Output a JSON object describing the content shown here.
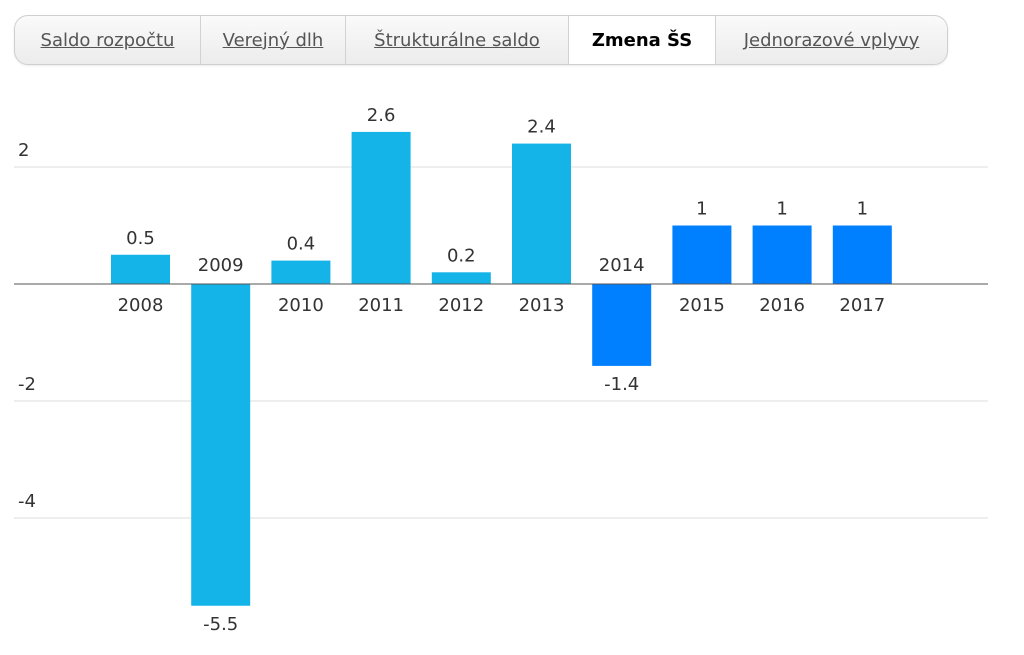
{
  "tabs": [
    {
      "label": "Saldo rozpočtu",
      "active": false
    },
    {
      "label": "Verejný dlh",
      "active": false
    },
    {
      "label": "Štrukturálne saldo",
      "active": false
    },
    {
      "label": "Zmena ŠS",
      "active": true
    },
    {
      "label": "Jednorazové vplyvy",
      "active": false
    }
  ],
  "chart_data": {
    "type": "bar",
    "title": "",
    "xlabel": "",
    "ylabel": "",
    "categories": [
      "2008",
      "2009",
      "2010",
      "2011",
      "2012",
      "2013",
      "2014",
      "2015",
      "2016",
      "2017"
    ],
    "values": [
      0.5,
      -5.5,
      0.4,
      2.6,
      0.2,
      2.4,
      -1.4,
      1,
      1,
      1
    ],
    "data_labels": [
      "0.5",
      "-5.5",
      "0.4",
      "2.6",
      "0.2",
      "2.4",
      "-1.4",
      "1",
      "1",
      "1"
    ],
    "bar_colors": [
      "#14b4e8",
      "#14b4e8",
      "#14b4e8",
      "#14b4e8",
      "#14b4e8",
      "#14b4e8",
      "#0080ff",
      "#0080ff",
      "#0080ff",
      "#0080ff"
    ],
    "y_ticks": [
      {
        "value": 2,
        "label": "2"
      },
      {
        "value": 0,
        "label": ""
      },
      {
        "value": -2,
        "label": "-2"
      },
      {
        "value": -4,
        "label": "-4"
      }
    ],
    "ylim": [
      -6,
      3
    ],
    "grid": true,
    "colors": {
      "grid": "#dddddd",
      "axis": "#555555"
    }
  }
}
